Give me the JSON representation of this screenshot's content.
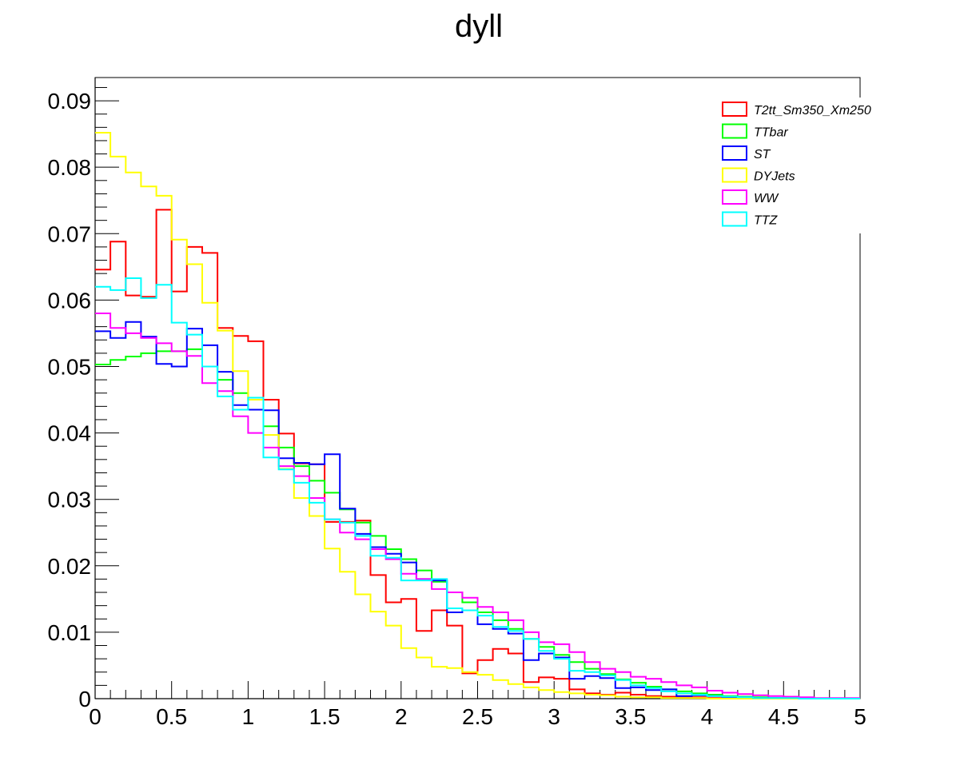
{
  "chart_data": {
    "type": "line",
    "style": "step-histogram",
    "title": "dyll",
    "xlim": [
      0,
      5
    ],
    "ylim": [
      0,
      0.0935
    ],
    "bin_width": 0.1,
    "x_ticks": [
      0,
      0.5,
      1,
      1.5,
      2,
      2.5,
      3,
      3.5,
      4,
      4.5,
      5
    ],
    "x_tick_labels": [
      "0",
      "0.5",
      "1",
      "1.5",
      "2",
      "2.5",
      "3",
      "3.5",
      "4",
      "4.5",
      "5"
    ],
    "y_ticks": [
      0,
      0.01,
      0.02,
      0.03,
      0.04,
      0.05,
      0.06,
      0.07,
      0.08,
      0.09
    ],
    "y_tick_labels": [
      "0",
      "0.01",
      "0.02",
      "0.03",
      "0.04",
      "0.05",
      "0.06",
      "0.07",
      "0.08",
      "0.09"
    ],
    "grid": false,
    "legend_position": "top-right",
    "series": [
      {
        "name": "T2tt_Sm350_Xm250",
        "color": "#ff0000",
        "values": [
          0.0646,
          0.0688,
          0.0607,
          0.0605,
          0.0736,
          0.0613,
          0.068,
          0.0671,
          0.0558,
          0.0546,
          0.0538,
          0.045,
          0.0399,
          0.0354,
          0.0353,
          0.0266,
          0.0266,
          0.0268,
          0.0186,
          0.0145,
          0.015,
          0.0102,
          0.0133,
          0.011,
          0.0038,
          0.0058,
          0.0075,
          0.0068,
          0.0025,
          0.0032,
          0.003,
          0.0014,
          0.0008,
          0.0006,
          0.0009,
          0.0006,
          0.0004,
          0.0003,
          0.0002,
          0.0002,
          0.0001,
          0.0001,
          0.0001,
          0.0,
          0.0,
          0.0,
          0.0,
          0.0,
          0.0,
          0.0
        ]
      },
      {
        "name": "TTbar",
        "color": "#00ff00",
        "values": [
          0.0503,
          0.051,
          0.0515,
          0.052,
          0.0523,
          0.0523,
          0.0526,
          0.05,
          0.048,
          0.046,
          0.045,
          0.041,
          0.0378,
          0.035,
          0.0328,
          0.031,
          0.0285,
          0.0265,
          0.0245,
          0.0225,
          0.021,
          0.0193,
          0.0176,
          0.016,
          0.0145,
          0.013,
          0.0118,
          0.0105,
          0.009,
          0.0078,
          0.0066,
          0.0055,
          0.0045,
          0.0037,
          0.0029,
          0.0024,
          0.0018,
          0.0014,
          0.0011,
          0.0008,
          0.0006,
          0.0004,
          0.0003,
          0.0002,
          0.0001,
          0.0001,
          0.0001,
          0.0,
          0.0,
          0.0
        ]
      },
      {
        "name": "ST",
        "color": "#0000ff",
        "values": [
          0.0553,
          0.0543,
          0.0567,
          0.0545,
          0.0504,
          0.05,
          0.0557,
          0.0532,
          0.0492,
          0.0442,
          0.0435,
          0.0434,
          0.0362,
          0.0355,
          0.0353,
          0.0368,
          0.0286,
          0.0248,
          0.0228,
          0.0218,
          0.0205,
          0.018,
          0.0178,
          0.013,
          0.0133,
          0.0112,
          0.0105,
          0.0098,
          0.0058,
          0.0068,
          0.0062,
          0.003,
          0.0034,
          0.0031,
          0.0016,
          0.0017,
          0.0013,
          0.0014,
          0.0004,
          0.0005,
          0.0004,
          0.0002,
          0.0002,
          0.0001,
          0.0001,
          0.0,
          0.0,
          0.0,
          0.0,
          0.0
        ]
      },
      {
        "name": "DYJets",
        "color": "#ffff00",
        "values": [
          0.0852,
          0.0816,
          0.0792,
          0.0771,
          0.0757,
          0.0691,
          0.0654,
          0.0596,
          0.0554,
          0.0493,
          0.045,
          0.0397,
          0.0346,
          0.0302,
          0.0275,
          0.0226,
          0.0191,
          0.0157,
          0.0131,
          0.011,
          0.0076,
          0.0062,
          0.0048,
          0.0046,
          0.004,
          0.0036,
          0.0028,
          0.0022,
          0.0017,
          0.0013,
          0.001,
          0.0008,
          0.0006,
          0.0005,
          0.0003,
          0.0002,
          0.0002,
          0.0001,
          0.0001,
          0.0001,
          0.0,
          0.0,
          0.0,
          0.0,
          0.0,
          0.0,
          0.0,
          0.0,
          0.0,
          0.0
        ]
      },
      {
        "name": "WW",
        "color": "#ff00ff",
        "values": [
          0.058,
          0.0558,
          0.055,
          0.0543,
          0.0535,
          0.0523,
          0.0516,
          0.0475,
          0.0463,
          0.0425,
          0.04,
          0.0378,
          0.035,
          0.0335,
          0.0302,
          0.027,
          0.025,
          0.024,
          0.0225,
          0.021,
          0.0188,
          0.018,
          0.0165,
          0.016,
          0.0152,
          0.0138,
          0.013,
          0.0118,
          0.01,
          0.0085,
          0.0082,
          0.007,
          0.0055,
          0.0045,
          0.004,
          0.0033,
          0.003,
          0.0025,
          0.002,
          0.0017,
          0.0012,
          0.0009,
          0.0007,
          0.0005,
          0.0004,
          0.0003,
          0.0002,
          0.0001,
          0.0001,
          0.0001
        ]
      },
      {
        "name": "TTZ",
        "color": "#00ffff",
        "values": [
          0.062,
          0.0615,
          0.0633,
          0.0603,
          0.0623,
          0.0566,
          0.0548,
          0.05,
          0.0455,
          0.0435,
          0.0453,
          0.0363,
          0.0345,
          0.0325,
          0.0295,
          0.027,
          0.0265,
          0.0245,
          0.0215,
          0.0212,
          0.0178,
          0.0178,
          0.018,
          0.0136,
          0.0133,
          0.0125,
          0.0108,
          0.0102,
          0.009,
          0.0072,
          0.006,
          0.0042,
          0.004,
          0.0035,
          0.0028,
          0.002,
          0.0016,
          0.0011,
          0.0008,
          0.0006,
          0.0004,
          0.0003,
          0.0002,
          0.0001,
          0.0001,
          0.0001,
          0.0,
          0.0,
          0.0,
          0.0
        ]
      }
    ]
  }
}
